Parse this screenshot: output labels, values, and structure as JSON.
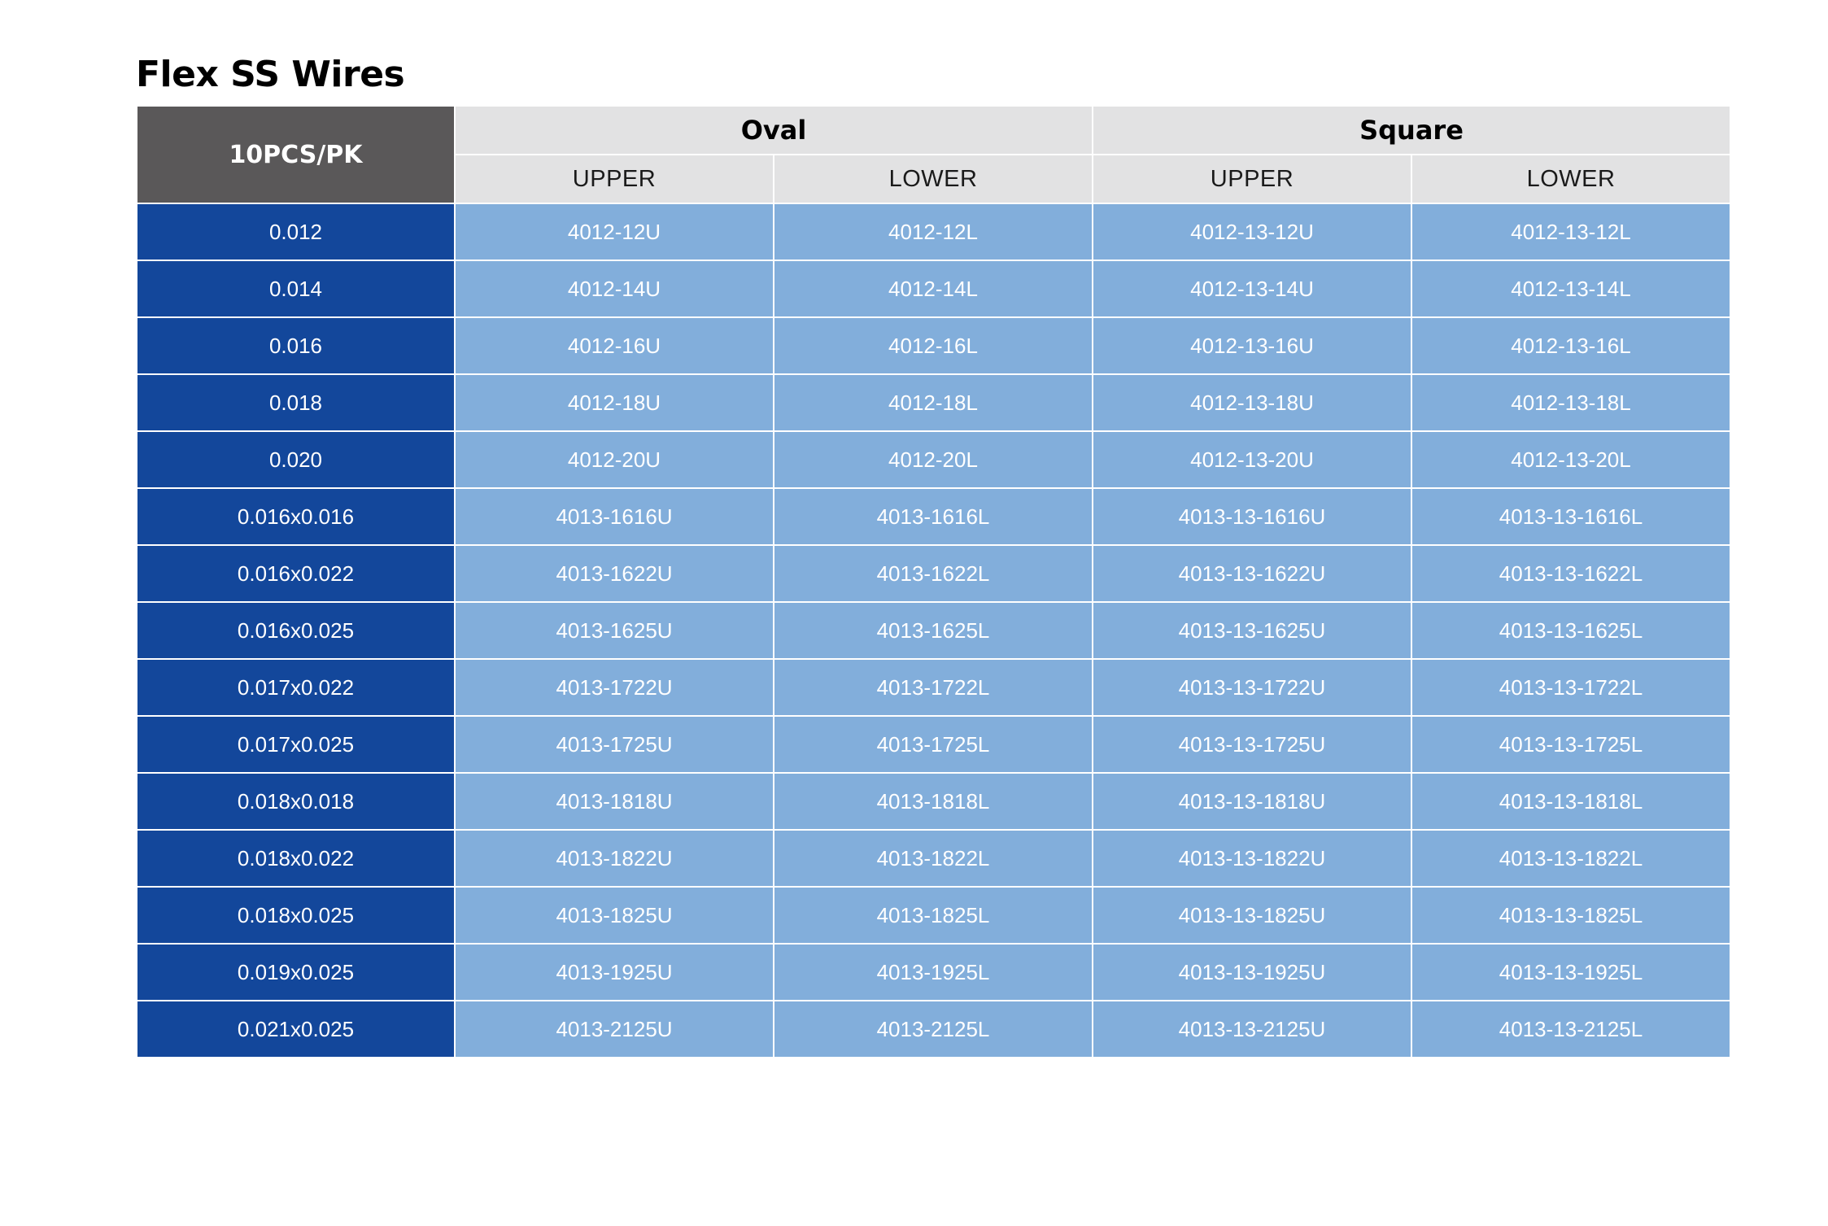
{
  "title": "Flex SS Wires",
  "colors": {
    "corner": "#5a5859",
    "header": "#e2e2e3",
    "size_column": "#13479b",
    "value_cells": "#82aedb"
  },
  "table": {
    "corner_label": "10PCS/PK",
    "groups": [
      "Oval",
      "Square"
    ],
    "sub_headers": [
      "UPPER",
      "LOWER",
      "UPPER",
      "LOWER"
    ],
    "rows": [
      {
        "size": "0.012",
        "cells": [
          "4012-12U",
          "4012-12L",
          "4012-13-12U",
          "4012-13-12L"
        ]
      },
      {
        "size": "0.014",
        "cells": [
          "4012-14U",
          "4012-14L",
          "4012-13-14U",
          "4012-13-14L"
        ]
      },
      {
        "size": "0.016",
        "cells": [
          "4012-16U",
          "4012-16L",
          "4012-13-16U",
          "4012-13-16L"
        ]
      },
      {
        "size": "0.018",
        "cells": [
          "4012-18U",
          "4012-18L",
          "4012-13-18U",
          "4012-13-18L"
        ]
      },
      {
        "size": "0.020",
        "cells": [
          "4012-20U",
          "4012-20L",
          "4012-13-20U",
          "4012-13-20L"
        ]
      },
      {
        "size": "0.016x0.016",
        "cells": [
          "4013-1616U",
          "4013-1616L",
          "4013-13-1616U",
          "4013-13-1616L"
        ]
      },
      {
        "size": "0.016x0.022",
        "cells": [
          "4013-1622U",
          "4013-1622L",
          "4013-13-1622U",
          "4013-13-1622L"
        ]
      },
      {
        "size": "0.016x0.025",
        "cells": [
          "4013-1625U",
          "4013-1625L",
          "4013-13-1625U",
          "4013-13-1625L"
        ]
      },
      {
        "size": "0.017x0.022",
        "cells": [
          "4013-1722U",
          "4013-1722L",
          "4013-13-1722U",
          "4013-13-1722L"
        ]
      },
      {
        "size": "0.017x0.025",
        "cells": [
          "4013-1725U",
          "4013-1725L",
          "4013-13-1725U",
          "4013-13-1725L"
        ]
      },
      {
        "size": "0.018x0.018",
        "cells": [
          "4013-1818U",
          "4013-1818L",
          "4013-13-1818U",
          "4013-13-1818L"
        ]
      },
      {
        "size": "0.018x0.022",
        "cells": [
          "4013-1822U",
          "4013-1822L",
          "4013-13-1822U",
          "4013-13-1822L"
        ]
      },
      {
        "size": "0.018x0.025",
        "cells": [
          "4013-1825U",
          "4013-1825L",
          "4013-13-1825U",
          "4013-13-1825L"
        ]
      },
      {
        "size": "0.019x0.025",
        "cells": [
          "4013-1925U",
          "4013-1925L",
          "4013-13-1925U",
          "4013-13-1925L"
        ]
      },
      {
        "size": "0.021x0.025",
        "cells": [
          "4013-2125U",
          "4013-2125L",
          "4013-13-2125U",
          "4013-13-2125L"
        ]
      }
    ]
  }
}
